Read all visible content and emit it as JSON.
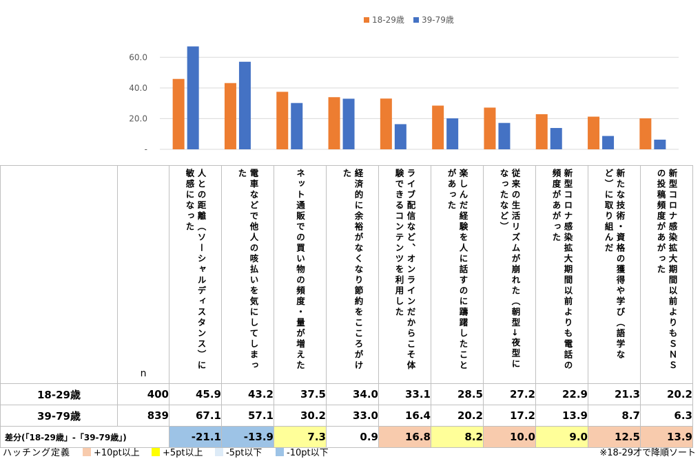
{
  "chart_data": {
    "type": "bar",
    "categories": [
      "人との距離（ソーシャルディスタンス）に敏感になった",
      "電車などで他人の咳払いを気にしてしまった",
      "ネット通販での買い物の頻度・量が増えた",
      "経済的に余裕がなくなり節約をこころがけた",
      "ライブ配信など、オンラインだからこそ体験できるコンテンツを利用した",
      "楽しんだ経験を人に話すのに躊躇したことがあった",
      "従来の生活リズムが崩れた（朝型→夜型になったなど）",
      "新型コロナ感染拡大期間以前よりも電話の頻度があがった",
      "新たな技術・資格の獲得や学び（語学など）に取り組んだ",
      "新型コロナ感染拡大期間以前よりもＳＮＳの投稿頻度があがった"
    ],
    "series": [
      {
        "name": "18-29歳",
        "color": "#ED7D31",
        "values": [
          45.9,
          43.2,
          37.5,
          34.0,
          33.1,
          28.5,
          27.2,
          22.9,
          21.3,
          20.2
        ]
      },
      {
        "name": "39-79歳",
        "color": "#4472C4",
        "values": [
          67.1,
          57.1,
          30.2,
          33.0,
          16.4,
          20.2,
          17.2,
          13.9,
          8.7,
          6.3
        ]
      }
    ],
    "yticks": [
      "-",
      "20.0",
      "40.0",
      "60.0"
    ],
    "ylim": [
      0,
      70
    ],
    "grid": true,
    "legend": "top-center"
  },
  "table": {
    "n_header": "n",
    "rows": [
      {
        "label": "18-29歳",
        "n": "400",
        "values": [
          "45.9",
          "43.2",
          "37.5",
          "34.0",
          "33.1",
          "28.5",
          "27.2",
          "22.9",
          "21.3",
          "20.2"
        ]
      },
      {
        "label": "39-79歳",
        "n": "839",
        "values": [
          "67.1",
          "57.1",
          "30.2",
          "33.0",
          "16.4",
          "20.2",
          "17.2",
          "13.9",
          "8.7",
          "6.3"
        ]
      }
    ],
    "diff": {
      "label": "差分(「18-29歳」-「39-79歳」)",
      "values": [
        "-21.1",
        "-13.9",
        "7.3",
        "0.9",
        "16.8",
        "8.2",
        "10.0",
        "9.0",
        "12.5",
        "13.9"
      ],
      "colors": [
        "#9DC3E6",
        "#9DC3E6",
        "#FFFF99",
        "#FFFFFF",
        "#F8CBAD",
        "#FFFF99",
        "#F8CBAD",
        "#FFFF99",
        "#F8CBAD",
        "#F8CBAD"
      ]
    }
  },
  "footer": {
    "title": "ハッチング定義",
    "items": [
      {
        "label": "+10pt以上",
        "color": "#F8CBAD"
      },
      {
        "label": "+5pt以上",
        "color": "#FFFF00"
      },
      {
        "label": "-5pt以下",
        "color": "#DDEBF7"
      },
      {
        "label": "-10pt以下",
        "color": "#9DC3E6"
      }
    ],
    "note": "※18-29才で降順ソート"
  }
}
